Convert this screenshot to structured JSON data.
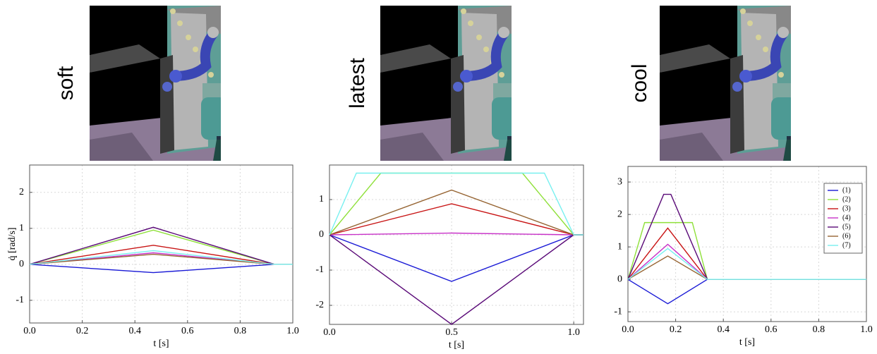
{
  "chart_data": [
    {
      "type": "line",
      "title": "soft",
      "xlabel": "t [s]",
      "ylabel": "q̇ [rad/s]",
      "xlim": [
        0,
        1.0
      ],
      "ylim": [
        -1.63,
        2.76
      ],
      "xticks": [
        {
          "value": 0,
          "label": "0.0"
        },
        0.2,
        0.4,
        0.6,
        0.8,
        {
          "value": 1,
          "label": "1.0"
        }
      ],
      "yticks": [
        -1,
        0,
        1,
        2
      ],
      "grid": true,
      "series": [
        {
          "color": "#1a1ad6",
          "x": [
            0,
            0.47,
            0.93,
            1.0
          ],
          "values": [
            0,
            -0.23,
            0,
            0
          ]
        },
        {
          "color": "#8fe03a",
          "x": [
            0,
            0.47,
            0.93,
            1.0
          ],
          "values": [
            0,
            0.95,
            0,
            0
          ]
        },
        {
          "color": "#c81414",
          "x": [
            0,
            0.47,
            0.93,
            1.0
          ],
          "values": [
            0,
            0.53,
            0,
            0
          ]
        },
        {
          "color": "#c832c8",
          "x": [
            0,
            0.47,
            0.93,
            1.0
          ],
          "values": [
            0,
            0.32,
            0,
            0
          ]
        },
        {
          "color": "#5a0a78",
          "x": [
            0,
            0.47,
            0.93,
            1.0
          ],
          "values": [
            0,
            1.03,
            0,
            0
          ]
        },
        {
          "color": "#966432",
          "x": [
            0,
            0.47,
            0.93,
            1.0
          ],
          "values": [
            0,
            0.28,
            0,
            0
          ]
        },
        {
          "color": "#78f0f0",
          "x": [
            0,
            0.47,
            0.93,
            1.0
          ],
          "values": [
            0,
            0.38,
            0,
            0
          ]
        }
      ]
    },
    {
      "type": "line",
      "title": "latest",
      "xlabel": "t [s]",
      "xlim": [
        0,
        1.04
      ],
      "ylim": [
        -2.54,
        1.98
      ],
      "xticks": [
        {
          "value": 0,
          "label": "0.0"
        },
        0.5,
        {
          "value": 1,
          "label": "1.0"
        }
      ],
      "yticks": [
        -2,
        -1,
        0,
        1
      ],
      "grid": true,
      "series": [
        {
          "color": "#1a1ad6",
          "x": [
            0,
            0.5,
            1.0,
            1.04
          ],
          "values": [
            0,
            -1.32,
            0,
            0
          ]
        },
        {
          "color": "#8fe03a",
          "x": [
            0,
            0.21,
            0.79,
            1.0,
            1.04
          ],
          "values": [
            0,
            1.75,
            1.75,
            0,
            0
          ]
        },
        {
          "color": "#c81414",
          "x": [
            0,
            0.5,
            1.0,
            1.04
          ],
          "values": [
            0,
            0.88,
            0,
            0
          ]
        },
        {
          "color": "#c832c8",
          "x": [
            0,
            0.5,
            1.0,
            1.04
          ],
          "values": [
            0,
            0.05,
            0,
            0
          ]
        },
        {
          "color": "#5a0a78",
          "x": [
            0,
            0.5,
            1.0,
            1.04
          ],
          "values": [
            0,
            -2.54,
            0,
            0
          ]
        },
        {
          "color": "#966432",
          "x": [
            0,
            0.5,
            1.0,
            1.04
          ],
          "values": [
            0,
            1.27,
            0,
            0
          ]
        },
        {
          "color": "#78f0f0",
          "x": [
            0,
            0.11,
            0.88,
            1.0,
            1.04
          ],
          "values": [
            0,
            1.75,
            1.75,
            0,
            0
          ]
        }
      ]
    },
    {
      "type": "line",
      "title": "cool",
      "xlabel": "t [s]",
      "xlim": [
        0,
        1.0
      ],
      "ylim": [
        -1.3,
        3.48
      ],
      "xticks": [
        {
          "value": 0,
          "label": "0.0"
        },
        0.2,
        0.4,
        0.6,
        0.8,
        {
          "value": 1,
          "label": "1.0"
        }
      ],
      "yticks": [
        -1,
        0,
        1,
        2,
        3
      ],
      "grid": true,
      "legend": "top-right",
      "series": [
        {
          "name": "(1)",
          "color": "#1a1ad6",
          "x": [
            0,
            0.167,
            0.333,
            1.0
          ],
          "values": [
            0,
            -0.75,
            0,
            0
          ]
        },
        {
          "name": "(2)",
          "color": "#8fe03a",
          "x": [
            0,
            0.07,
            0.27,
            0.333,
            1.0
          ],
          "values": [
            0,
            1.75,
            1.75,
            0,
            0
          ]
        },
        {
          "name": "(3)",
          "color": "#c81414",
          "x": [
            0,
            0.167,
            0.333,
            1.0
          ],
          "values": [
            0,
            1.58,
            0,
            0
          ]
        },
        {
          "name": "(4)",
          "color": "#c832c8",
          "x": [
            0,
            0.167,
            0.333,
            1.0
          ],
          "values": [
            0,
            1.08,
            0,
            0
          ]
        },
        {
          "name": "(5)",
          "color": "#5a0a78",
          "x": [
            0,
            0.15,
            0.18,
            0.333,
            1.0
          ],
          "values": [
            0,
            2.62,
            2.62,
            0,
            0
          ]
        },
        {
          "name": "(6)",
          "color": "#966432",
          "x": [
            0,
            0.167,
            0.333,
            1.0
          ],
          "values": [
            0,
            0.72,
            0,
            0
          ]
        },
        {
          "name": "(7)",
          "color": "#78f0f0",
          "x": [
            0,
            0.167,
            0.333,
            1.0
          ],
          "values": [
            0,
            0.95,
            0,
            0
          ]
        }
      ]
    }
  ]
}
